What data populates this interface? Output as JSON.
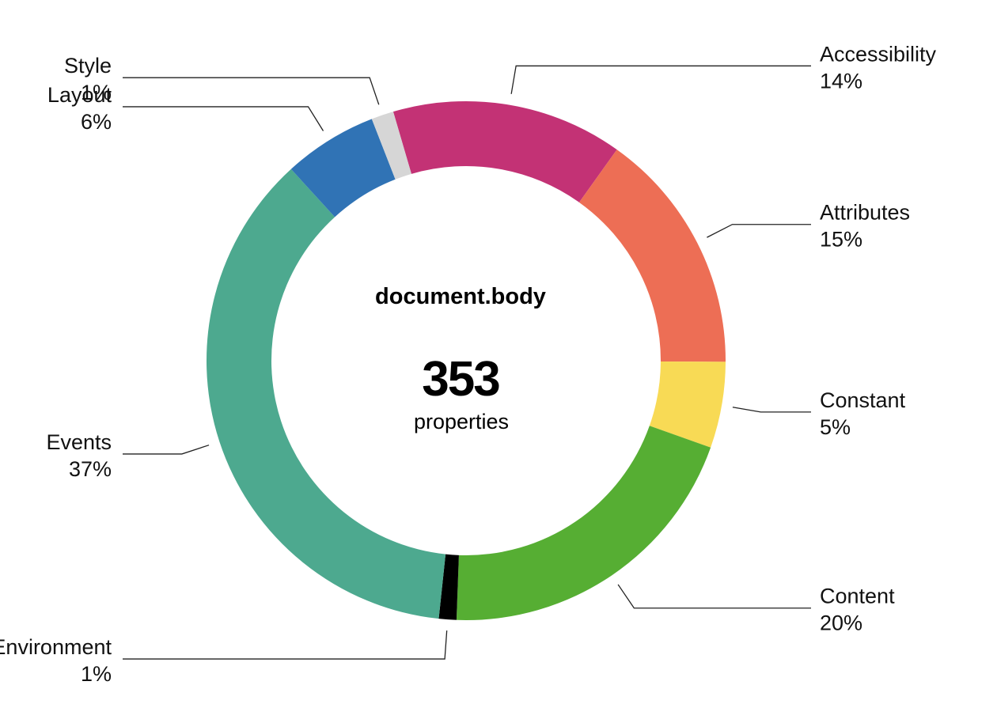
{
  "chart_data": {
    "type": "pie",
    "variant": "donut",
    "title": "document.body",
    "total": "353",
    "total_label": "properties",
    "slices": [
      {
        "label": "Accessibility",
        "percent_label": "14%",
        "value": 14.5,
        "color": "#C33275"
      },
      {
        "label": "Attributes",
        "percent_label": "15%",
        "value": 15.3,
        "color": "#ED6E55"
      },
      {
        "label": "Constant",
        "percent_label": "5%",
        "value": 5.4,
        "color": "#F8DA55"
      },
      {
        "label": "Content",
        "percent_label": "20%",
        "value": 20.3,
        "color": "#56AE33"
      },
      {
        "label": "Environment",
        "percent_label": "1%",
        "value": 1.1,
        "color": "#000000"
      },
      {
        "label": "Events",
        "percent_label": "37%",
        "value": 36.8,
        "color": "#4DA98F"
      },
      {
        "label": "Layout",
        "percent_label": "6%",
        "value": 5.9,
        "color": "#3073B5"
      },
      {
        "label": "Style",
        "percent_label": "1%",
        "value": 1.4,
        "color": "#D6D6D6"
      }
    ]
  }
}
